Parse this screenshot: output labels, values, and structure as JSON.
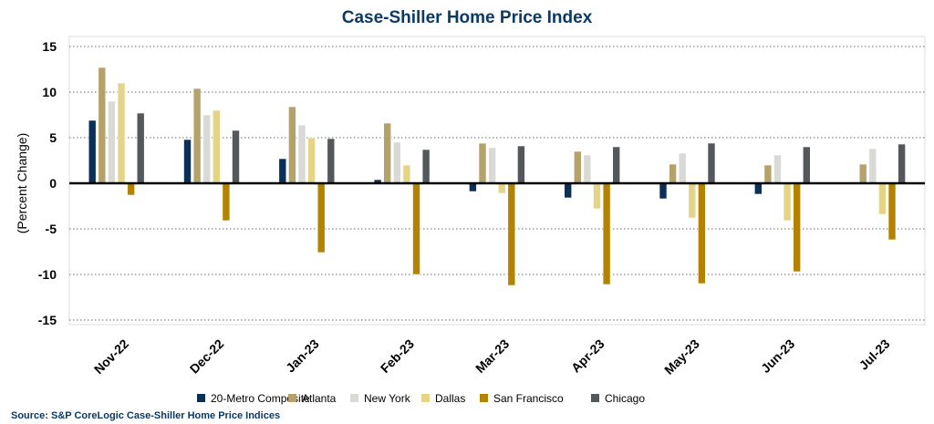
{
  "chart_data": {
    "type": "bar",
    "title": "Case-Shiller Home Price Index",
    "xlabel": "",
    "ylabel": "(Percent Change)",
    "ylim": [
      -15,
      15
    ],
    "yticks": [
      15,
      10,
      5,
      0,
      -5,
      -10,
      -15
    ],
    "grid": true,
    "legend_position": "bottom",
    "categories": [
      "Nov-22",
      "Dec-22",
      "Jan-23",
      "Feb-23",
      "Mar-23",
      "Apr-23",
      "May-23",
      "Jun-23",
      "Jul-23"
    ],
    "series": [
      {
        "name": "20-Metro Composite",
        "color": "#0b2f57",
        "values": [
          6.9,
          4.8,
          2.7,
          0.4,
          -0.9,
          -1.6,
          -1.7,
          -1.2,
          0.0
        ]
      },
      {
        "name": "Atlanta",
        "color": "#b5a26a",
        "values": [
          12.7,
          10.4,
          8.4,
          6.6,
          4.4,
          3.5,
          2.1,
          2.0,
          2.1
        ]
      },
      {
        "name": "New York",
        "color": "#d9d9d6",
        "values": [
          9.0,
          7.5,
          6.4,
          4.5,
          3.9,
          3.1,
          3.3,
          3.1,
          3.8
        ]
      },
      {
        "name": "Dallas",
        "color": "#e6d486",
        "values": [
          11.0,
          8.0,
          5.0,
          2.0,
          -1.1,
          -2.8,
          -3.8,
          -4.1,
          -3.4
        ]
      },
      {
        "name": "San Francisco",
        "color": "#b38200",
        "values": [
          -1.3,
          -4.1,
          -7.6,
          -10.0,
          -11.2,
          -11.1,
          -11.0,
          -9.7,
          -6.2
        ]
      },
      {
        "name": "Chicago",
        "color": "#54585a",
        "values": [
          7.7,
          5.8,
          4.9,
          3.7,
          4.1,
          4.0,
          4.4,
          4.0,
          4.3
        ]
      }
    ],
    "source": "Source: S&P CoreLogic Case-Shiller Home Price Indices"
  }
}
